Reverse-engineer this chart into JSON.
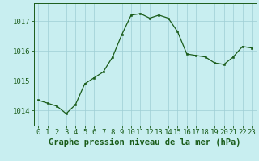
{
  "x": [
    0,
    1,
    2,
    3,
    4,
    5,
    6,
    7,
    8,
    9,
    10,
    11,
    12,
    13,
    14,
    15,
    16,
    17,
    18,
    19,
    20,
    21,
    22,
    23
  ],
  "y": [
    1014.35,
    1014.25,
    1014.15,
    1013.9,
    1014.2,
    1014.9,
    1015.1,
    1015.3,
    1015.8,
    1016.55,
    1017.2,
    1017.25,
    1017.1,
    1017.2,
    1017.1,
    1016.65,
    1015.9,
    1015.85,
    1015.8,
    1015.6,
    1015.55,
    1015.8,
    1016.15,
    1016.1
  ],
  "line_color": "#1a5c1a",
  "marker_color": "#1a5c1a",
  "bg_color": "#c8eef0",
  "grid_color": "#9ecdd4",
  "xlabel": "Graphe pression niveau de la mer (hPa)",
  "xlabel_color": "#1a5c1a",
  "tick_color": "#1a5c1a",
  "ylim": [
    1013.5,
    1017.6
  ],
  "yticks": [
    1014,
    1015,
    1016,
    1017
  ],
  "xticks": [
    0,
    1,
    2,
    3,
    4,
    5,
    6,
    7,
    8,
    9,
    10,
    11,
    12,
    13,
    14,
    15,
    16,
    17,
    18,
    19,
    20,
    21,
    22,
    23
  ],
  "tick_fontsize": 6.5,
  "xlabel_fontsize": 7.5
}
